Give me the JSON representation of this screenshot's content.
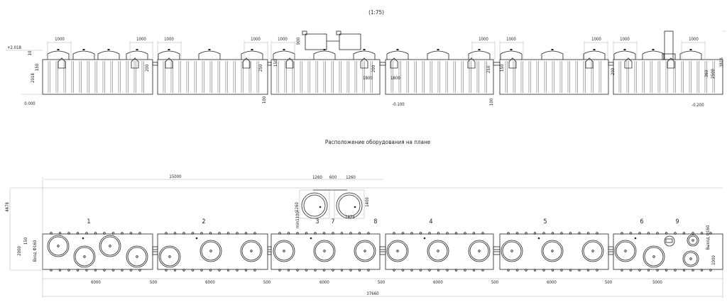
{
  "scale": "(1:75)",
  "plan_title": "Расположение оборудования на плане",
  "elevation": {
    "dims_1000": [
      "1000",
      "1000",
      "1000",
      "1000",
      "1000",
      "1000",
      "1000",
      "1000",
      "1000",
      "1000"
    ],
    "level_top": "+2.018",
    "level_zero": "0.000",
    "level_m100": "-0.100",
    "level_m200": "-0.200",
    "dim_10": "10",
    "dim_150a": "150",
    "dim_2018": "2018",
    "dim_200a": "200",
    "dim_250a": "250",
    "dim_100a": "100",
    "dim_900": "900",
    "dim_150b": "150",
    "dim_200b": "200",
    "dim_1800a": "1800",
    "dim_1800b": "1800",
    "dim_250b": "250",
    "dim_100b": "100",
    "dim_150c": "150",
    "dim_200c": "200",
    "dim_360": "360",
    "dim_2500": "2500",
    "dim_3816": "3816"
  },
  "plan": {
    "dim_15000": "15000",
    "dim_4478": "4478",
    "dim_2000": "2000",
    "dim_150": "150",
    "inlet": "Вход Ф160",
    "outlet": "Выход Ф160",
    "dim_1000": "1000",
    "dim_1260a": "1260",
    "dim_600": "600",
    "dim_1260b": "1260",
    "dim_1260c": "1260",
    "dim_1400": "1400",
    "dim_1425": "1425",
    "dim_min1100": "min1100",
    "markers": [
      "1",
      "2",
      "3",
      "7",
      "8",
      "4",
      "5",
      "6",
      "9"
    ],
    "bottom_dims": [
      "6000",
      "500",
      "6000",
      "500",
      "6000",
      "500",
      "6000",
      "500",
      "6000",
      "500",
      "5000"
    ],
    "total": "37660"
  },
  "colors": {
    "line": "#222222",
    "background": "#ffffff"
  }
}
